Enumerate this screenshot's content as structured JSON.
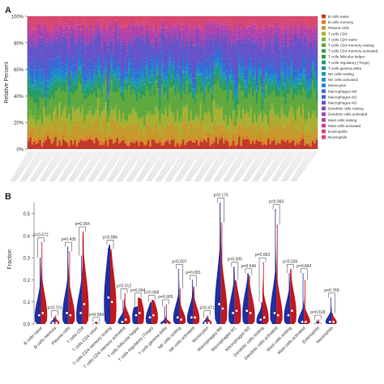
{
  "chart_data": [
    {
      "panel": "A",
      "type": "bar",
      "subtype": "stacked-100-percent",
      "ylabel": "Relative Percent",
      "ylim": [
        0,
        100
      ],
      "yticks": [
        "0%",
        "20%",
        "40%",
        "60%",
        "80%",
        "100%"
      ],
      "x_tick_labels": "dense, illegible sample names",
      "legend_position": "right",
      "series": [
        {
          "name": "B cells naive",
          "color": "#c0392b",
          "approx_share": 5
        },
        {
          "name": "B cells memory",
          "color": "#e07b2a",
          "approx_share": 2
        },
        {
          "name": "Plasma cells",
          "color": "#c69a2b",
          "approx_share": 10
        },
        {
          "name": "T cells CD8",
          "color": "#a8b032",
          "approx_share": 8
        },
        {
          "name": "T cells CD4 naive",
          "color": "#7fb03a",
          "approx_share": 2
        },
        {
          "name": "T cells CD4 memory resting",
          "color": "#5fa83e",
          "approx_share": 14
        },
        {
          "name": "T cells CD4 memory activated",
          "color": "#3f9e45",
          "approx_share": 1
        },
        {
          "name": "T cells follicular helper",
          "color": "#2e9a57",
          "approx_share": 3
        },
        {
          "name": "T cells regulatory (Tregs)",
          "color": "#249b73",
          "approx_share": 4
        },
        {
          "name": "T cells gamma delta",
          "color": "#1c9d8e",
          "approx_share": 1
        },
        {
          "name": "NK cells resting",
          "color": "#1a9aa8",
          "approx_share": 2
        },
        {
          "name": "NK cells activated",
          "color": "#1d90bf",
          "approx_share": 2
        },
        {
          "name": "Monocytes",
          "color": "#2383cf",
          "approx_share": 3
        },
        {
          "name": "Macrophages M0",
          "color": "#2f6fd6",
          "approx_share": 5
        },
        {
          "name": "Macrophages M1",
          "color": "#4a5fd2",
          "approx_share": 4
        },
        {
          "name": "Macrophages M2",
          "color": "#6553c9",
          "approx_share": 14
        },
        {
          "name": "Dendritic cells resting",
          "color": "#7f4bc0",
          "approx_share": 2
        },
        {
          "name": "Dendritic cells activated",
          "color": "#9846b5",
          "approx_share": 3
        },
        {
          "name": "Mast cells resting",
          "color": "#b143a8",
          "approx_share": 6
        },
        {
          "name": "Mast cells activated",
          "color": "#c54197",
          "approx_share": 2
        },
        {
          "name": "Eosinophils",
          "color": "#d14384",
          "approx_share": 1
        },
        {
          "name": "Neutrophils",
          "color": "#d9476f",
          "approx_share": 6
        }
      ]
    },
    {
      "panel": "B",
      "type": "violin",
      "ylabel": "Fraction",
      "ylim": [
        0,
        0.55
      ],
      "yticks": [
        "0.0",
        "0.1",
        "0.2",
        "0.3",
        "0.4",
        "0.5"
      ],
      "group_colors": {
        "group1": "#1f2f9e",
        "group2": "#c0181f"
      },
      "categories": [
        {
          "name": "B cells naive",
          "p": "p=0.572",
          "max1": 0.3,
          "max2": 0.37,
          "med1": 0.04,
          "med2": 0.05
        },
        {
          "name": "B cells memory",
          "p": "p=0.701",
          "max1": 0.03,
          "max2": 0.04,
          "med1": 0.005,
          "med2": 0.005
        },
        {
          "name": "Plasma cells",
          "p": "p=0.435",
          "max1": 0.35,
          "max2": 0.33,
          "med1": 0.05,
          "med2": 0.04
        },
        {
          "name": "T cells CD8",
          "p": "p=0.004",
          "max1": 0.31,
          "max2": 0.42,
          "med1": 0.05,
          "med2": 0.09
        },
        {
          "name": "T cells CD4 naive",
          "p": "p=0.984",
          "max1": 0.01,
          "max2": 0.01,
          "med1": 0.0,
          "med2": 0.0
        },
        {
          "name": "T cells CD4 memory resting",
          "p": "p=0.086",
          "max1": 0.36,
          "max2": 0.34,
          "med1": 0.12,
          "med2": 0.1
        },
        {
          "name": "T cells CD4 memory activated",
          "p": "p=0.012",
          "max1": 0.11,
          "max2": 0.14,
          "med1": 0.01,
          "med2": 0.02
        },
        {
          "name": "T cells follicular helper",
          "p": "p=0.004",
          "max1": 0.08,
          "max2": 0.12,
          "med1": 0.04,
          "med2": 0.05
        },
        {
          "name": "T cells regulatory (Tregs)",
          "p": "p=0.068",
          "max1": 0.1,
          "max2": 0.11,
          "med1": 0.03,
          "med2": 0.04
        },
        {
          "name": "T cells gamma delta",
          "p": "p=0.905",
          "max1": 0.08,
          "max2": 0.09,
          "med1": 0.0,
          "med2": 0.0
        },
        {
          "name": "NK cells resting",
          "p": "p=0.007",
          "max1": 0.25,
          "max2": 0.16,
          "med1": 0.03,
          "med2": 0.02
        },
        {
          "name": "NK cells activated",
          "p": "p=0.081",
          "max1": 0.2,
          "max2": 0.17,
          "med1": 0.03,
          "med2": 0.03
        },
        {
          "name": "Monocytes",
          "p": "p=0.471",
          "max1": 0.03,
          "max2": 0.04,
          "med1": 0.005,
          "med2": 0.005
        },
        {
          "name": "Macrophages M0",
          "p": "p=0.175",
          "max1": 0.55,
          "max2": 0.46,
          "med1": 0.09,
          "med2": 0.07
        },
        {
          "name": "Macrophages M1",
          "p": "p=0.005",
          "max1": 0.26,
          "max2": 0.2,
          "med1": 0.05,
          "med2": 0.06
        },
        {
          "name": "Macrophages M2",
          "p": "p=0.549",
          "max1": 0.23,
          "max2": 0.22,
          "med1": 0.06,
          "med2": 0.05
        },
        {
          "name": "Dendritic cells resting",
          "p": "p=0.062",
          "max1": 0.1,
          "max2": 0.28,
          "med1": 0.02,
          "med2": 0.03
        },
        {
          "name": "Dendritic cells activated",
          "p": "p=0.093",
          "max1": 0.52,
          "max2": 0.45,
          "med1": 0.05,
          "med2": 0.04
        },
        {
          "name": "Mast cells resting",
          "p": "p=0.036",
          "max1": 0.23,
          "max2": 0.25,
          "med1": 0.04,
          "med2": 0.06
        },
        {
          "name": "Mast cells activated",
          "p": "p=0.842",
          "max1": 0.23,
          "max2": 0.2,
          "med1": 0.01,
          "med2": 0.01
        },
        {
          "name": "Eosinophils",
          "p": "p=0.618",
          "max1": 0.02,
          "max2": 0.02,
          "med1": 0.0,
          "med2": 0.0
        },
        {
          "name": "Neutrophils",
          "p": "p=0.769",
          "max1": 0.12,
          "max2": 0.05,
          "med1": 0.01,
          "med2": 0.01
        }
      ]
    }
  ],
  "panel_labels": {
    "a": "A",
    "b": "B"
  }
}
